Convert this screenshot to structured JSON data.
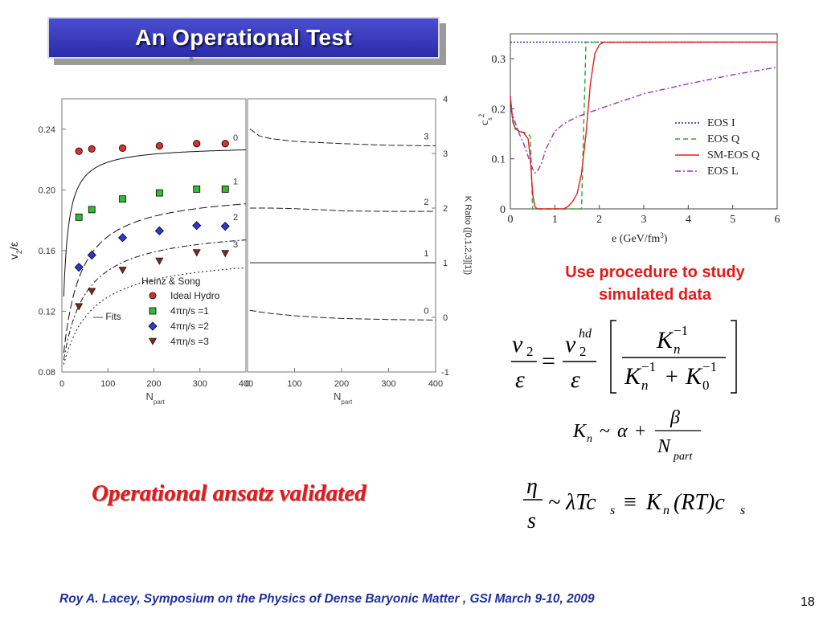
{
  "slide": {
    "title": "An Operational Test",
    "note_line1": "Use procedure to study",
    "note_line2": "simulated data",
    "ansatz_text": "Operational ansatz  validated",
    "footer": "Roy A. Lacey,  Symposium on the  Physics of Dense Baryonic Matter ,  GSI  March 9-10,  2009",
    "page_number": "18",
    "colors": {
      "title_bg": "#2a2ba8",
      "highlight": "#e51919",
      "footer": "#1f2fa0"
    }
  },
  "equations": {
    "eq1": {
      "lhs_num": "v",
      "lhs_num_sub": "2",
      "lhs_den": "ε",
      "eq": "=",
      "mid_num": "v",
      "mid_num_sub": "2",
      "mid_num_sup": "hd",
      "mid_den": "ε",
      "frac_num": "K",
      "frac_num_sub": "n",
      "frac_num_sup": "−1",
      "frac_den_a": "K",
      "frac_den_a_sub": "n",
      "frac_den_a_sup": "−1",
      "plus": "+",
      "frac_den_b": "K",
      "frac_den_b_sub": "0",
      "frac_den_b_sup": "−1"
    },
    "eq2": {
      "lhs": "K",
      "lhs_sub": "n",
      "rel": "~",
      "alpha": "α",
      "plus": "+",
      "num": "β",
      "den": "N",
      "den_sub": "part"
    },
    "eq3": {
      "num": "η",
      "den": "s",
      "rhs": "~ λTc",
      "rhs_sub1": "s",
      "equiv": "≡",
      "k": "K",
      "k_sub": "n",
      "paren": "(RT)c",
      "rhs_sub2": "s"
    }
  },
  "chart_data": [
    {
      "type": "scatter",
      "xlabel": "N",
      "xlabel_sub": "part",
      "ylabel": "v",
      "ylabel_sub": "2",
      "ylabel_tail": "/ε",
      "xlim": [
        0,
        400
      ],
      "ylim": [
        0.08,
        0.26
      ],
      "x_ticks": [
        "0",
        "100",
        "200",
        "300",
        "400"
      ],
      "y_ticks": [
        "0.08",
        "0.12",
        "0.16",
        "0.20",
        "0.24"
      ],
      "legend_title": "Heinz & Song",
      "fits_label": "— Fits",
      "series": [
        {
          "name": "Ideal Hydro",
          "curve_label": "0",
          "marker": "circle",
          "color": "#d9302a",
          "x": [
            37,
            65,
            132,
            212,
            293,
            355
          ],
          "y": [
            0.2255,
            0.227,
            0.2275,
            0.229,
            0.2305,
            0.2305
          ]
        },
        {
          "name": "4πη/s =1",
          "curve_label": "1",
          "marker": "square",
          "color": "#33bb33",
          "x": [
            37,
            65,
            132,
            212,
            293,
            355
          ],
          "y": [
            0.182,
            0.187,
            0.194,
            0.198,
            0.2005,
            0.2005
          ]
        },
        {
          "name": "4πη/s =2",
          "curve_label": "2",
          "marker": "diamond",
          "color": "#2a3ad8",
          "x": [
            37,
            65,
            132,
            212,
            293,
            355
          ],
          "y": [
            0.149,
            0.157,
            0.1685,
            0.173,
            0.1765,
            0.176
          ]
        },
        {
          "name": "4πη/s =3",
          "curve_label": "3",
          "marker": "triangle",
          "color": "#7a2b1e",
          "x": [
            37,
            65,
            132,
            212,
            293,
            355
          ],
          "y": [
            0.123,
            0.133,
            0.147,
            0.153,
            0.1585,
            0.158
          ]
        }
      ]
    },
    {
      "type": "line",
      "xlabel": "N",
      "xlabel_sub": "part",
      "ylabel": "K Ratio ([0,1,2,3][1])",
      "xlim": [
        0,
        400
      ],
      "ylim": [
        -1,
        4
      ],
      "x_ticks": [
        "0",
        "100",
        "200",
        "300",
        "400"
      ],
      "y_ticks": [
        "-1",
        "0",
        "1",
        "2",
        "3",
        "4"
      ],
      "series": [
        {
          "curve_label": "3",
          "x": [
            5,
            25,
            50,
            100,
            150,
            200,
            300,
            400
          ],
          "y": [
            3.45,
            3.32,
            3.27,
            3.22,
            3.2,
            3.18,
            3.15,
            3.14
          ]
        },
        {
          "curve_label": "2",
          "x": [
            5,
            25,
            50,
            100,
            150,
            200,
            300,
            400
          ],
          "y": [
            2.0,
            2.0,
            2.0,
            1.99,
            1.97,
            1.95,
            1.94,
            1.94
          ]
        },
        {
          "curve_label": "1",
          "x": [
            5,
            400
          ],
          "y": [
            1.0,
            1.0
          ]
        },
        {
          "curve_label": "0",
          "x": [
            5,
            25,
            50,
            100,
            150,
            200,
            300,
            400
          ],
          "y": [
            0.13,
            0.1,
            0.07,
            0.03,
            0.0,
            -0.02,
            -0.04,
            -0.05
          ]
        }
      ]
    },
    {
      "type": "line",
      "xlabel": "e (GeV/fm",
      "xlabel_sup": "3",
      "xlabel_tail": ")",
      "ylabel": "c",
      "ylabel_sub": "s",
      "ylabel_sup": "2",
      "xlim": [
        0,
        6
      ],
      "ylim": [
        0,
        0.35
      ],
      "x_ticks": [
        "0",
        "1",
        "2",
        "3",
        "4",
        "5",
        "6"
      ],
      "y_ticks": [
        "0",
        "0.1",
        "0.2",
        "0.3"
      ],
      "series": [
        {
          "name": "EOS I",
          "color": "#1f2fa0",
          "dash": "2,2",
          "x": [
            0,
            6
          ],
          "y": [
            0.3333,
            0.3333
          ]
        },
        {
          "name": "EOS Q",
          "color": "#33a033",
          "dash": "6,4",
          "x": [
            0,
            0.05,
            0.1,
            0.2,
            0.3,
            0.4,
            0.45,
            0.5,
            1.6,
            1.7,
            6
          ],
          "y": [
            0.225,
            0.175,
            0.16,
            0.155,
            0.153,
            0.15,
            0.145,
            0.0,
            0.0,
            0.3333,
            0.3333
          ]
        },
        {
          "name": "SM-EOS Q",
          "color": "#e02020",
          "dash": "",
          "x": [
            0,
            0.05,
            0.1,
            0.2,
            0.3,
            0.4,
            0.45,
            0.5,
            0.55,
            0.6,
            1.2,
            1.3,
            1.4,
            1.5,
            1.6,
            1.7,
            1.8,
            1.9,
            2.0,
            2.1,
            6
          ],
          "y": [
            0.225,
            0.18,
            0.163,
            0.155,
            0.152,
            0.14,
            0.1,
            0.03,
            0.005,
            0.0,
            0.0,
            0.005,
            0.015,
            0.03,
            0.07,
            0.15,
            0.25,
            0.31,
            0.328,
            0.333,
            0.3333
          ]
        },
        {
          "name": "EOS L",
          "color": "#a030c0",
          "dash": "7,3,2,3",
          "x": [
            0,
            0.1,
            0.2,
            0.3,
            0.4,
            0.5,
            0.55,
            0.6,
            0.7,
            0.8,
            1.0,
            1.2,
            1.5,
            2,
            3,
            4,
            5,
            6
          ],
          "y": [
            0.2,
            0.175,
            0.15,
            0.13,
            0.105,
            0.08,
            0.072,
            0.074,
            0.09,
            0.12,
            0.155,
            0.17,
            0.184,
            0.2,
            0.23,
            0.25,
            0.268,
            0.283
          ]
        }
      ]
    }
  ]
}
